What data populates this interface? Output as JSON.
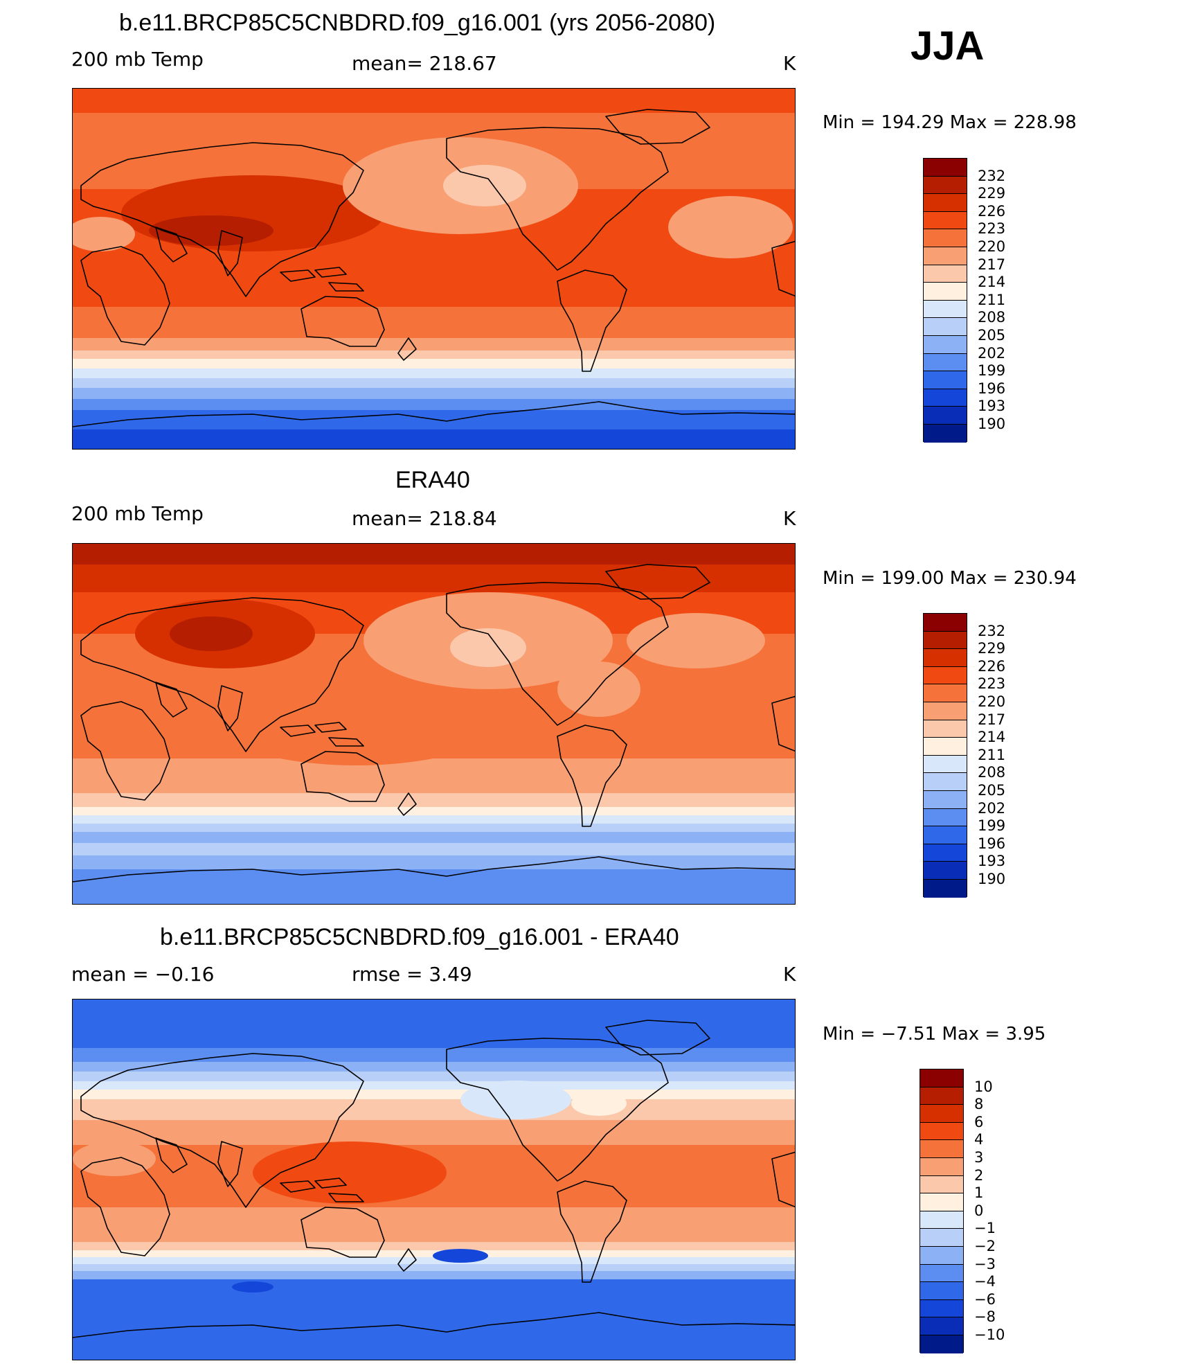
{
  "season": "JJA",
  "panels": [
    {
      "title": "b.e11.BRCP85C5CNBDRD.f09_g16.001 (yrs 2056-2080)",
      "left_label": "200 mb Temp",
      "center_label": "mean= 218.67",
      "unit": "K",
      "minmax": "Min = 194.29 Max = 228.98",
      "colorbar_labels": [
        "232",
        "229",
        "226",
        "223",
        "220",
        "217",
        "214",
        "211",
        "208",
        "205",
        "202",
        "199",
        "196",
        "193",
        "190"
      ],
      "map_style": "model"
    },
    {
      "title": "ERA40",
      "left_label": "200 mb Temp",
      "center_label": "mean= 218.84",
      "unit": "K",
      "minmax": "Min = 199.00 Max = 230.94",
      "colorbar_labels": [
        "232",
        "229",
        "226",
        "223",
        "220",
        "217",
        "214",
        "211",
        "208",
        "205",
        "202",
        "199",
        "196",
        "193",
        "190"
      ],
      "map_style": "obs"
    },
    {
      "title": "b.e11.BRCP85C5CNBDRD.f09_g16.001 - ERA40",
      "left_label": "mean = −0.16",
      "center_label": "rmse = 3.49",
      "unit": "K",
      "minmax": "Min = −7.51 Max = 3.95",
      "colorbar_labels": [
        "10",
        "8",
        "6",
        "4",
        "3",
        "2",
        "1",
        "0",
        "−1",
        "−2",
        "−3",
        "−4",
        "−6",
        "−8",
        "−10"
      ],
      "map_style": "diff"
    }
  ],
  "colors": {
    "palette_warm_to_cold": [
      "#8b0000",
      "#b51e00",
      "#d63000",
      "#f04a12",
      "#f5733a",
      "#f89f74",
      "#fcc8ac",
      "#fff0e0",
      "#d8e8fa",
      "#b8d0f8",
      "#8cb2f5",
      "#5b8ef0",
      "#2f69ea",
      "#1446d9",
      "#0a2db8",
      "#001a8a"
    ],
    "coastline": "#000000"
  }
}
